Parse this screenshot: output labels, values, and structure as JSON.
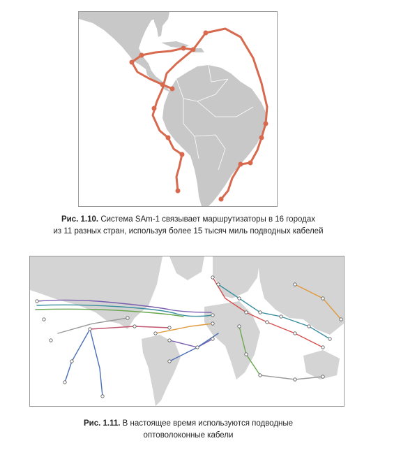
{
  "figure1": {
    "label": "Рис. 1.10.",
    "caption_line1": "Система SAm-1 связывает маршрутизаторы в 16 городах",
    "caption_line2": "из 11 разных стран, используя более 15 тысяч миль подводных кабелей",
    "cable_color": "#d7694e",
    "land_color": "#c8c8c8"
  },
  "figure2": {
    "label": "Рис. 1.11.",
    "caption_line1": "В настоящее время используются подводные",
    "caption_line2": "оптоволоконные кабели",
    "land_color": "#d4d4d4"
  }
}
